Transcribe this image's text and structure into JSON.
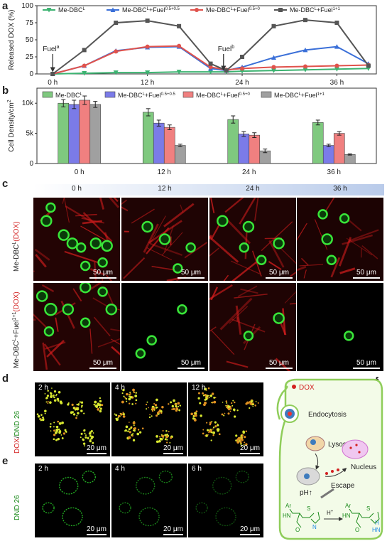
{
  "panels": {
    "a": {
      "label": "a",
      "ylabel": "Released DOX (%)",
      "annotation_fuel_a": "Fuel",
      "annotation_fuel_a_sup": "a",
      "annotation_fuel_b": "Fuel",
      "annotation_fuel_b_sup": "b"
    },
    "b": {
      "label": "b",
      "ylabel": "Cell Density/cm",
      "ylabel_sup": "2"
    },
    "c": {
      "label": "c",
      "times": [
        "0 h",
        "12 h",
        "24 h",
        "36 h"
      ],
      "row_labels": [
        {
          "main": "Me-DBC",
          "sup": "L",
          "tail": "(DOX)"
        },
        {
          "main": "Me-DBC",
          "sup": "L",
          "mid": "+Fuel",
          "sup2": "1+1",
          "tail": "(DOX)"
        }
      ],
      "scale_bar": "50 μm"
    },
    "d": {
      "label": "d",
      "ylabel_red": "DOX",
      "ylabel_sep": "/",
      "ylabel_green": "DND 26",
      "times": [
        "2 h",
        "4 h",
        "12 h"
      ],
      "scale_bar": "20 μm"
    },
    "e": {
      "label": "e",
      "ylabel": "DND 26",
      "times": [
        "2 h",
        "4 h",
        "6 h"
      ],
      "scale_bar": "20 μm"
    },
    "f": {
      "label": "f",
      "dox": "DOX",
      "endocytosis": "Endocytosis",
      "lysosomes": "Lysosomes",
      "ph": "pH",
      "escape": "Escape",
      "nucleus": "Nucleus",
      "h_plus": "H",
      "h_plus_sup": "+",
      "ar": "Ar",
      "hn": "HN",
      "h": "H",
      "n": "N",
      "s": "S",
      "o": "O"
    }
  },
  "chart_data": [
    {
      "type": "line",
      "panel": "a",
      "ylabel": "Released DOX (%)",
      "ylim": [
        0,
        100
      ],
      "yticks": [
        0,
        25,
        50,
        75,
        100
      ],
      "xticks": [
        "0 h",
        "12 h",
        "24 h",
        "36 h"
      ],
      "xlim": [
        -2,
        41
      ],
      "x": [
        0,
        4,
        8,
        12,
        16,
        20,
        22,
        24,
        28,
        32,
        36,
        40
      ],
      "series": [
        {
          "name": "Me-DBC",
          "sup": "L",
          "color": "#3cb371",
          "marker": "triangle-down",
          "values": [
            0,
            1,
            2,
            2,
            3,
            3,
            3,
            4,
            5,
            6,
            7,
            8
          ]
        },
        {
          "name": "Me-DBC",
          "sup": "L",
          "suffix": "+Fuel",
          "suffix_sup": "0.5+0.5",
          "color": "#3a6fd8",
          "marker": "triangle-up",
          "values": [
            0,
            12,
            34,
            39,
            40,
            8,
            5,
            10,
            24,
            35,
            40,
            15
          ]
        },
        {
          "name": "Me-DBC",
          "sup": "L",
          "suffix": "+Fuel",
          "suffix_sup": "0.5+0",
          "color": "#e0524c",
          "marker": "circle",
          "values": [
            0,
            12,
            33,
            40,
            41,
            10,
            6,
            8,
            10,
            11,
            12,
            13
          ]
        },
        {
          "name": "Me-DBC",
          "sup": "L",
          "suffix": "+Fuel",
          "suffix_sup": "1+1",
          "color": "#555555",
          "marker": "square",
          "values": [
            0,
            35,
            75,
            78,
            70,
            15,
            5,
            25,
            70,
            79,
            75,
            12
          ]
        }
      ]
    },
    {
      "type": "bar",
      "panel": "b",
      "ylabel": "Cell Density/cm²",
      "ylim": [
        0,
        12500
      ],
      "ytick_labels": [
        "0",
        "5k",
        "10k"
      ],
      "yticks": [
        0,
        5000,
        10000
      ],
      "categories": [
        "0 h",
        "12 h",
        "24 h",
        "36 h"
      ],
      "series": [
        {
          "name": "Me-DBC",
          "sup": "L",
          "color": "#7fc97f",
          "values": [
            10000,
            8500,
            7300,
            6800
          ],
          "errors": [
            600,
            600,
            600,
            400
          ]
        },
        {
          "name": "Me-DBC",
          "sup": "L",
          "suffix": "+Fuel",
          "suffix_sup": "0.5+0.5",
          "color": "#7b7be8",
          "values": [
            9800,
            6700,
            4900,
            3000
          ],
          "errors": [
            700,
            500,
            400,
            200
          ]
        },
        {
          "name": "Me-DBC",
          "sup": "L",
          "suffix": "+Fuel",
          "suffix_sup": "0.5+0",
          "color": "#f08080",
          "values": [
            10500,
            6000,
            4700,
            5000
          ],
          "errors": [
            700,
            400,
            400,
            300
          ]
        },
        {
          "name": "Me-DBC",
          "sup": "L",
          "suffix": "+Fuel",
          "suffix_sup": "1+1",
          "color": "#a0a0a0",
          "values": [
            9800,
            3000,
            2100,
            1500
          ],
          "errors": [
            500,
            200,
            300,
            100
          ]
        }
      ]
    }
  ]
}
